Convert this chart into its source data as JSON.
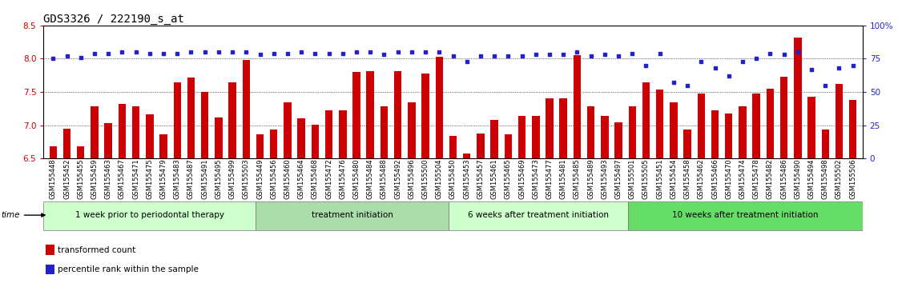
{
  "title": "GDS3326 / 222190_s_at",
  "ylim_left": [
    6.5,
    8.5
  ],
  "ylim_right": [
    0,
    100
  ],
  "yticks_left": [
    6.5,
    7.0,
    7.5,
    8.0,
    8.5
  ],
  "yticks_right": [
    0,
    25,
    50,
    75,
    100
  ],
  "ytick_labels_right": [
    "0",
    "25",
    "50",
    "75",
    "100%"
  ],
  "bar_color": "#cc0000",
  "dot_color": "#2222cc",
  "bg_color": "#ffffff",
  "tick_label_color_left": "#cc0000",
  "tick_label_color_right": "#2222cc",
  "samples": [
    "GSM155448",
    "GSM155452",
    "GSM155455",
    "GSM155459",
    "GSM155463",
    "GSM155467",
    "GSM155471",
    "GSM155475",
    "GSM155479",
    "GSM155483",
    "GSM155487",
    "GSM155491",
    "GSM155495",
    "GSM155499",
    "GSM155503",
    "GSM155449",
    "GSM155456",
    "GSM155460",
    "GSM155464",
    "GSM155468",
    "GSM155472",
    "GSM155476",
    "GSM155480",
    "GSM155484",
    "GSM155488",
    "GSM155492",
    "GSM155496",
    "GSM155500",
    "GSM155504",
    "GSM155450",
    "GSM155453",
    "GSM155457",
    "GSM155461",
    "GSM155465",
    "GSM155469",
    "GSM155473",
    "GSM155477",
    "GSM155481",
    "GSM155485",
    "GSM155489",
    "GSM155493",
    "GSM155497",
    "GSM155501",
    "GSM155505",
    "GSM155451",
    "GSM155454",
    "GSM155458",
    "GSM155462",
    "GSM155466",
    "GSM155470",
    "GSM155474",
    "GSM155478",
    "GSM155482",
    "GSM155486",
    "GSM155490",
    "GSM155494",
    "GSM155498",
    "GSM155502",
    "GSM155506"
  ],
  "bar_values": [
    6.68,
    6.95,
    6.68,
    7.28,
    7.03,
    7.32,
    7.28,
    7.17,
    6.86,
    7.65,
    7.72,
    7.5,
    7.12,
    7.65,
    7.98,
    6.86,
    6.93,
    7.34,
    7.1,
    7.01,
    7.22,
    7.23,
    7.8,
    7.81,
    7.28,
    7.81,
    7.34,
    7.78,
    8.03,
    6.84,
    6.58,
    6.88,
    7.08,
    6.86,
    7.14,
    7.14,
    7.4,
    7.4,
    8.05,
    7.28,
    7.14,
    7.04,
    7.28,
    7.65,
    7.54,
    7.35,
    6.93,
    7.48,
    7.22,
    7.18,
    7.28,
    7.48,
    7.55,
    7.73,
    8.32,
    7.43,
    6.93,
    7.62,
    7.38
  ],
  "percentile_values": [
    75,
    77,
    76,
    79,
    79,
    80,
    80,
    79,
    79,
    79,
    80,
    80,
    80,
    80,
    80,
    78,
    79,
    79,
    80,
    79,
    79,
    79,
    80,
    80,
    78,
    80,
    80,
    80,
    80,
    77,
    73,
    77,
    77,
    77,
    77,
    78,
    78,
    78,
    80,
    77,
    78,
    77,
    79,
    70,
    79,
    57,
    55,
    73,
    68,
    62,
    73,
    75,
    79,
    78,
    80,
    67,
    55,
    68,
    70
  ],
  "groups": [
    {
      "label": "1 week prior to periodontal therapy",
      "start": 0,
      "end": 15
    },
    {
      "label": "treatment initiation",
      "start": 15,
      "end": 29
    },
    {
      "label": "6 weeks after treatment initiation",
      "start": 29,
      "end": 42
    },
    {
      "label": "10 weeks after treatment initiation",
      "start": 42,
      "end": 59
    }
  ],
  "group_colors": [
    "#ccffcc",
    "#aaddaa",
    "#ccffcc",
    "#66dd66"
  ],
  "title_fontsize": 10,
  "tick_fontsize": 6.0,
  "group_label_fontsize": 7.5,
  "time_label": "time"
}
